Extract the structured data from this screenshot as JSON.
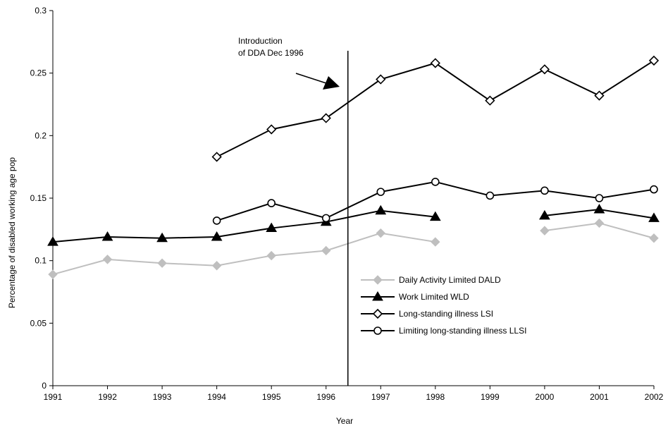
{
  "chart_data": {
    "type": "line",
    "title": "",
    "xlabel": "Year",
    "ylabel": "Percentage of disabled working age pop",
    "categories": [
      "1991",
      "1992",
      "1993",
      "1994",
      "1995",
      "1996",
      "1997",
      "1998",
      "1999",
      "2000",
      "2001",
      "2002"
    ],
    "ylim": [
      0,
      0.3
    ],
    "yticks": [
      "0",
      "0.05",
      "0.1",
      "0.15",
      "0.2",
      "0.25",
      "0.3"
    ],
    "grid": false,
    "legend_position": "right-middle",
    "series": [
      {
        "name": "Daily Activity Limited DALD",
        "color": "#bfbfbf",
        "marker": "diamond-filled",
        "values": [
          0.089,
          0.101,
          0.098,
          0.096,
          0.104,
          0.108,
          0.122,
          0.115,
          null,
          0.124,
          0.13,
          0.118
        ]
      },
      {
        "name": "Work Limited WLD",
        "color": "#000000",
        "marker": "triangle-filled",
        "values": [
          0.115,
          0.119,
          0.118,
          0.119,
          0.126,
          0.131,
          0.14,
          0.135,
          null,
          0.136,
          0.141,
          0.134
        ]
      },
      {
        "name": "Long-standing illness LSI",
        "color": "#000000",
        "marker": "diamond-open",
        "values": [
          null,
          null,
          null,
          0.183,
          0.205,
          0.214,
          0.245,
          0.258,
          0.228,
          0.253,
          0.232,
          0.26
        ]
      },
      {
        "name": "Limiting long-standing illness LLSI",
        "color": "#000000",
        "marker": "circle-open",
        "values": [
          null,
          null,
          null,
          0.132,
          0.146,
          0.134,
          0.155,
          0.163,
          0.152,
          0.156,
          0.15,
          0.157
        ]
      }
    ],
    "annotation": {
      "lines": [
        "Introduction",
        "of DDA Dec 1996"
      ],
      "vertical_line_x": 1996.4
    }
  }
}
